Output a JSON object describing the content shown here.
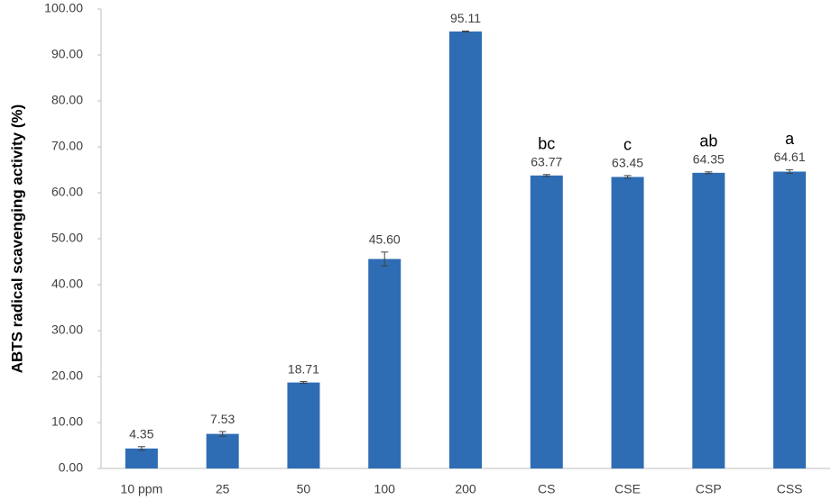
{
  "chart_data": {
    "type": "bar",
    "y_label": "ABTS radical scavenging activity (%)",
    "categories": [
      "10 ppm",
      "25",
      "50",
      "100",
      "200",
      "CS",
      "CSE",
      "CSP",
      "CSS"
    ],
    "values": [
      4.35,
      7.53,
      18.71,
      45.6,
      95.11,
      63.77,
      63.45,
      64.35,
      64.61
    ],
    "value_labels": [
      "4.35",
      "7.53",
      "18.71",
      "45.60",
      "95.11",
      "63.77",
      "63.45",
      "64.35",
      "64.61"
    ],
    "errors": [
      0.4,
      0.5,
      0.2,
      1.5,
      0.1,
      0.2,
      0.3,
      0.2,
      0.4
    ],
    "significance_letters": [
      null,
      null,
      null,
      null,
      null,
      "bc",
      "c",
      "ab",
      "a"
    ],
    "color": "#2e6db4",
    "ylim": [
      0,
      100
    ],
    "yticks": [
      {
        "value": 0,
        "label": "0.00"
      },
      {
        "value": 10,
        "label": "10.00"
      },
      {
        "value": 20,
        "label": "20.00"
      },
      {
        "value": 30,
        "label": "30.00"
      },
      {
        "value": 40,
        "label": "40.00"
      },
      {
        "value": 50,
        "label": "50.00"
      },
      {
        "value": 60,
        "label": "60.00"
      },
      {
        "value": 70,
        "label": "70.00"
      },
      {
        "value": 80,
        "label": "80.00"
      },
      {
        "value": 90,
        "label": "90.00"
      },
      {
        "value": 100,
        "label": "100.00"
      }
    ],
    "grid": false
  }
}
